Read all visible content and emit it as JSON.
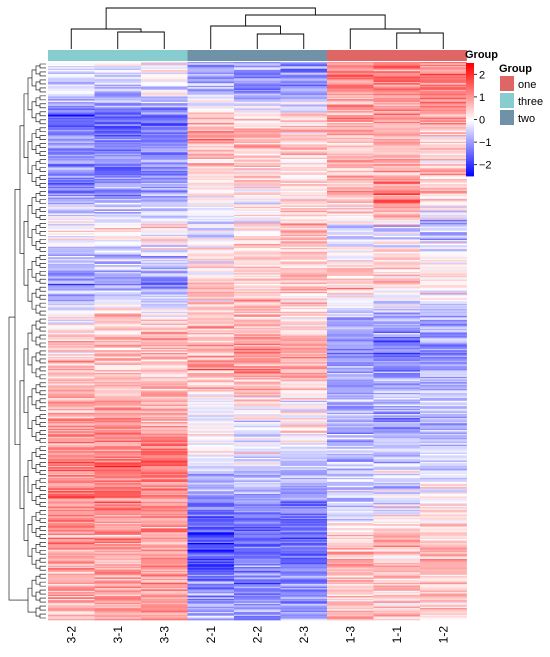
{
  "chart_data": {
    "type": "heatmap",
    "columns": [
      "3-2",
      "3-1",
      "3-3",
      "2-1",
      "2-2",
      "2-3",
      "1-3",
      "1-1",
      "1-2"
    ],
    "column_groups": [
      "three",
      "three",
      "three",
      "two",
      "two",
      "two",
      "one",
      "one",
      "one"
    ],
    "color_scale": {
      "low_color": "#0000ff",
      "mid_color": "#ffffff",
      "high_color": "#ff0000",
      "range": [
        -2.5,
        2.5
      ],
      "legend_ticks": [
        "2",
        "1",
        "0",
        "−1",
        "−2"
      ]
    },
    "group_legend": {
      "title": "Group",
      "entries": [
        {
          "label": "one",
          "color": "#e06666"
        },
        {
          "label": "three",
          "color": "#87cdd0"
        },
        {
          "label": "two",
          "color": "#6f92a8"
        }
      ]
    },
    "color_legend_title": "Group",
    "group_bar_colors": {
      "one": "#e06666",
      "three": "#87cdd0",
      "two": "#6f92a8"
    },
    "row_count_estimate": 420,
    "column_profile_trend": {
      "3-2": [
        -0.4,
        -0.3,
        -1.6,
        -1.0,
        -1.2,
        -0.8,
        0.3,
        -0.9,
        -1.1,
        0.1,
        0.6,
        0.5,
        0.8,
        0.9,
        1.2,
        1.3,
        1.1,
        0.9,
        1.0,
        0.8
      ],
      "3-1": [
        -0.3,
        -0.5,
        -1.7,
        -1.1,
        -1.2,
        -0.9,
        0.2,
        -0.6,
        -1.0,
        0.3,
        0.6,
        0.4,
        0.7,
        0.9,
        1.4,
        1.3,
        1.2,
        1.0,
        0.9,
        0.9
      ],
      "3-3": [
        0.1,
        -0.2,
        -1.5,
        -1.2,
        -1.0,
        -0.7,
        0.5,
        -0.5,
        -1.2,
        0.2,
        0.8,
        0.6,
        0.9,
        0.8,
        1.4,
        1.2,
        1.0,
        1.0,
        0.8,
        1.0
      ],
      "2-1": [
        -0.9,
        -0.7,
        0.6,
        0.9,
        0.3,
        0.1,
        -0.2,
        0.2,
        0.5,
        0.4,
        0.6,
        1.1,
        0.1,
        -0.2,
        0.0,
        -0.6,
        -1.5,
        -1.8,
        -1.4,
        -0.9
      ],
      "2-2": [
        -0.8,
        -1.0,
        0.5,
        0.7,
        0.4,
        0.2,
        0.2,
        0.4,
        0.4,
        0.5,
        0.9,
        1.0,
        0.3,
        -0.1,
        -0.2,
        -0.7,
        -1.2,
        -1.5,
        -1.3,
        -1.0
      ],
      "2-3": [
        -1.1,
        -0.9,
        0.4,
        0.6,
        0.2,
        0.4,
        0.6,
        0.5,
        0.6,
        0.4,
        0.7,
        0.8,
        0.1,
        0.2,
        -0.3,
        -0.8,
        -1.3,
        -1.6,
        -1.2,
        -0.9
      ],
      "1-3": [
        1.3,
        1.1,
        0.9,
        0.4,
        0.8,
        0.5,
        -0.4,
        0.3,
        0.6,
        -0.6,
        -1.1,
        -0.9,
        -0.8,
        -0.6,
        -0.7,
        -0.3,
        -0.6,
        0.6,
        0.7,
        0.6
      ],
      "1-1": [
        1.3,
        1.2,
        1.0,
        0.5,
        1.0,
        1.4,
        -0.5,
        0.4,
        0.5,
        -0.8,
        -1.3,
        -1.2,
        -0.6,
        -1.0,
        -0.5,
        -0.4,
        -0.3,
        0.8,
        0.6,
        0.5
      ],
      "1-2": [
        1.2,
        1.2,
        1.0,
        0.3,
        0.8,
        0.3,
        -1.0,
        0.0,
        0.4,
        -0.7,
        -0.8,
        -1.0,
        -0.5,
        -0.7,
        -0.4,
        -0.1,
        0.1,
        0.6,
        0.7,
        0.5
      ]
    }
  }
}
